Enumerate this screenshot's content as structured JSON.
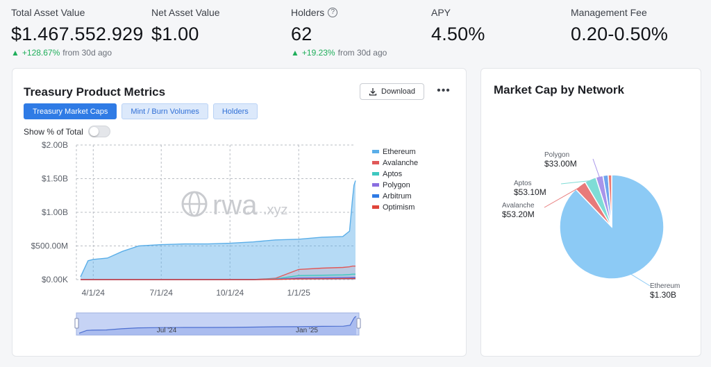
{
  "stats": [
    {
      "label": "Total Asset Value",
      "value": "$1.467.552.929",
      "change": "+128.67%",
      "change_suffix": "from 30d ago"
    },
    {
      "label": "Net Asset Value",
      "value": "$1.00"
    },
    {
      "label": "Holders",
      "value": "62",
      "change": "+19.23%",
      "change_suffix": "from 30d ago"
    },
    {
      "label": "APY",
      "value": "4.50%"
    },
    {
      "label": "Management Fee",
      "value": "0.20-0.50%"
    }
  ],
  "metrics_card": {
    "title": "Treasury Product Metrics",
    "download_label": "Download",
    "more_icon": "ellipsis-icon",
    "tabs": [
      {
        "label": "Treasury Market Caps",
        "active": true
      },
      {
        "label": "Mint / Burn Volumes",
        "active": false
      },
      {
        "label": "Holders",
        "active": false
      }
    ],
    "toggle_label": "Show % of Total",
    "toggle_on": false,
    "watermark": "rwa",
    "watermark_suffix": ".xyz",
    "range_labels": [
      "Jul '24",
      "Jan '25"
    ]
  },
  "network_card": {
    "title": "Market Cap by Network"
  },
  "chart_data": [
    {
      "type": "area",
      "title": "Treasury Product Metrics",
      "x": [
        "2024-03-15",
        "2024-03-25",
        "2024-04-01",
        "2024-04-20",
        "2024-05-10",
        "2024-06-01",
        "2024-07-01",
        "2024-08-01",
        "2024-09-01",
        "2024-10-01",
        "2024-11-01",
        "2024-12-01",
        "2025-01-01",
        "2025-02-01",
        "2025-03-01",
        "2025-03-10",
        "2025-03-14",
        "2025-03-16",
        "2025-03-18"
      ],
      "x_ticks": [
        "4/1/24",
        "7/1/24",
        "10/1/24",
        "1/1/25"
      ],
      "y_ticks": [
        "$0.00K",
        "$500.00M",
        "$1.00B",
        "$1.50B",
        "$2.00B"
      ],
      "ylim": [
        0,
        2000
      ],
      "y_unit": "$M",
      "series": [
        {
          "name": "Ethereum",
          "color": "#5aaee8",
          "values": [
            40,
            280,
            300,
            320,
            420,
            500,
            520,
            530,
            530,
            540,
            560,
            590,
            600,
            630,
            640,
            720,
            1200,
            1400,
            1470
          ]
        },
        {
          "name": "Avalanche",
          "color": "#e05858",
          "values": [
            0,
            0,
            0,
            0,
            0,
            0,
            0,
            0,
            0,
            0,
            0,
            20,
            150,
            170,
            180,
            190,
            200,
            200,
            200
          ]
        },
        {
          "name": "Aptos",
          "color": "#3ec8c0",
          "values": [
            0,
            0,
            0,
            0,
            0,
            0,
            0,
            0,
            0,
            0,
            0,
            10,
            60,
            65,
            70,
            75,
            80,
            80,
            80
          ]
        },
        {
          "name": "Polygon",
          "color": "#8a6ee0",
          "values": [
            0,
            0,
            0,
            0,
            0,
            0,
            0,
            0,
            0,
            0,
            0,
            5,
            25,
            28,
            30,
            32,
            33,
            33,
            33
          ]
        },
        {
          "name": "Arbitrum",
          "color": "#2f7be5",
          "values": [
            0,
            0,
            0,
            0,
            0,
            0,
            0,
            0,
            0,
            0,
            0,
            3,
            15,
            18,
            20,
            22,
            24,
            24,
            25
          ]
        },
        {
          "name": "Optimism",
          "color": "#e0453a",
          "values": [
            0,
            0,
            0,
            0,
            0,
            0,
            0,
            0,
            0,
            0,
            0,
            2,
            10,
            12,
            14,
            15,
            16,
            16,
            16
          ]
        }
      ],
      "legend_position": "right",
      "grid": true
    },
    {
      "type": "pie",
      "title": "Market Cap by Network",
      "slices": [
        {
          "name": "Ethereum",
          "label": "$1.30B",
          "value": 1300,
          "color": "#8ccaf5"
        },
        {
          "name": "Avalanche",
          "label": "$53.20M",
          "value": 53.2,
          "color": "#e87a7a"
        },
        {
          "name": "Aptos",
          "label": "$53.10M",
          "value": 53.1,
          "color": "#7fdcd6"
        },
        {
          "name": "Polygon",
          "label": "$33.00M",
          "value": 33.0,
          "color": "#a895ea"
        },
        {
          "name": "Arbitrum",
          "label": "",
          "value": 24,
          "color": "#6fa4ee"
        },
        {
          "name": "Optimism",
          "label": "",
          "value": 16,
          "color": "#ee7a72"
        }
      ]
    }
  ]
}
